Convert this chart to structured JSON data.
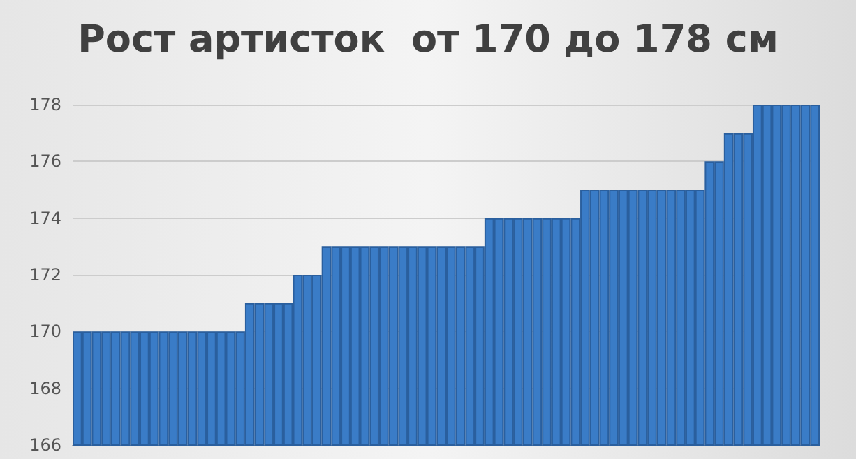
{
  "chart_data": {
    "type": "bar",
    "title": "Рост артисток  от 170 до 178 см",
    "categories": [
      null,
      null,
      null,
      null,
      null,
      null,
      null,
      null,
      null,
      null,
      null,
      null,
      null,
      null,
      null,
      null,
      null,
      null,
      null,
      null,
      null,
      null,
      null,
      null,
      null,
      null,
      null,
      null,
      null,
      null,
      null,
      null,
      null,
      null,
      null,
      null,
      null,
      null,
      null,
      null,
      null,
      null,
      null,
      null,
      null,
      null,
      null,
      null,
      null,
      null,
      null,
      null,
      null,
      null,
      null,
      null,
      null,
      null,
      null,
      null,
      null,
      null,
      null,
      null,
      null,
      null,
      null,
      null,
      null,
      null,
      null,
      null,
      null,
      null,
      null,
      null,
      null,
      null
    ],
    "values": [
      170,
      170,
      170,
      170,
      170,
      170,
      170,
      170,
      170,
      170,
      170,
      170,
      170,
      170,
      170,
      170,
      170,
      170,
      171,
      171,
      171,
      171,
      171,
      172,
      172,
      172,
      173,
      173,
      173,
      173,
      173,
      173,
      173,
      173,
      173,
      173,
      173,
      173,
      173,
      173,
      173,
      173,
      173,
      174,
      174,
      174,
      174,
      174,
      174,
      174,
      174,
      174,
      174,
      175,
      175,
      175,
      175,
      175,
      175,
      175,
      175,
      175,
      175,
      175,
      175,
      175,
      176,
      176,
      177,
      177,
      177,
      178,
      178,
      178,
      178,
      178,
      178,
      178
    ],
    "color": "#3a7cc7",
    "ylim": [
      166,
      178
    ],
    "yticks": [
      166,
      168,
      170,
      172,
      174,
      176,
      178
    ],
    "grid": "y",
    "tick_labels": "y"
  }
}
